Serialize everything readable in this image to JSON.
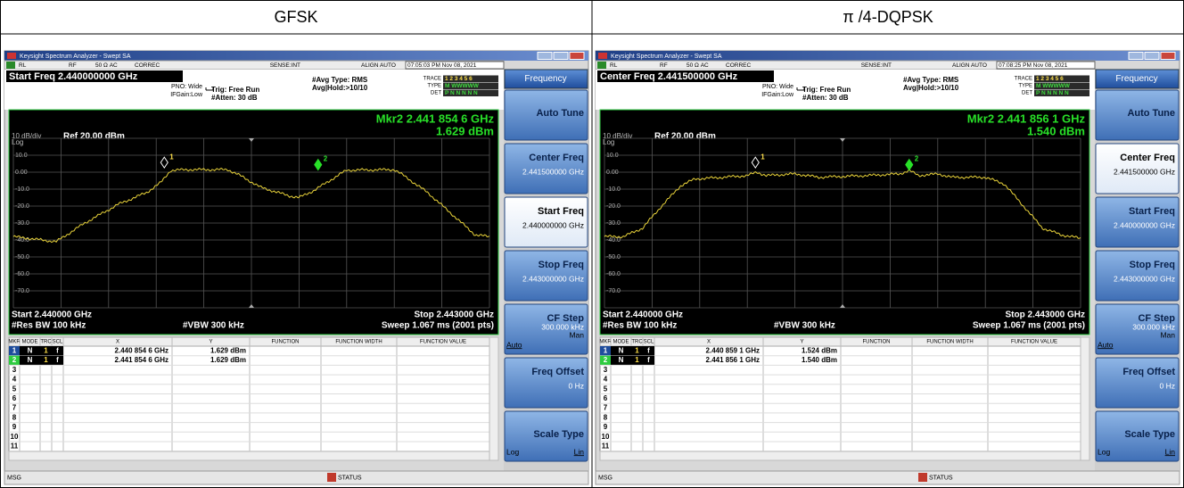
{
  "table": {
    "headers": [
      "GFSK",
      "π /4-DQPSK"
    ]
  },
  "panels": [
    {
      "window_title": "Keysight Spectrum Analyzer - Swept SA",
      "status": [
        "RL",
        "RF",
        "50 Ω  AC",
        "CORREC",
        "SENSE:INT",
        "ALIGN AUTO",
        "07:05:03 PM Nov 08, 2021"
      ],
      "active_function": "Start Freq 2.440000000 GHz",
      "settings": [
        "PNO: Wide",
        "IFGain:Low",
        "Trig: Free Run",
        "#Atten: 30 dB",
        "#Avg Type: RMS",
        "Avg|Hold:>10/10"
      ],
      "trace_labels": [
        "TRACE",
        "TYPE",
        "DET"
      ],
      "trace_rows": [
        "1 2 3 4 5 6",
        "M WWWWW",
        "P N N N N N"
      ],
      "marker_readout": [
        "Mkr2 2.441 854 6 GHz",
        "1.629 dBm"
      ],
      "scale": "10 dB/div",
      "log": "Log",
      "ref": "Ref 20.00 dBm",
      "y_labels": [
        "10.0",
        "0.00",
        "-10.0",
        "-20.0",
        "-30.0",
        "-40.0",
        "-50.0",
        "-60.0",
        "-70.0"
      ],
      "marker_flags": [
        "1",
        "2"
      ],
      "bottom": [
        "Start 2.440000 GHz",
        "Stop 2.443000 GHz",
        "#Res BW 100 kHz",
        "#VBW 300 kHz",
        "Sweep  1.067 ms (2001 pts)"
      ],
      "marker_table": {
        "columns": [
          "MKR",
          "MODE",
          "TRC",
          "SCL",
          "X",
          "Y",
          "FUNCTION",
          "FUNCTION WIDTH",
          "FUNCTION VALUE"
        ],
        "rows": [
          [
            "1",
            "N",
            "1",
            "f",
            "2.440 854 6 GHz",
            "1.629 dBm"
          ],
          [
            "2",
            "N",
            "1",
            "f",
            "2.441 854 6 GHz",
            "1.629 dBm"
          ]
        ],
        "empty_rows": [
          "3",
          "4",
          "5",
          "6",
          "7",
          "8",
          "9",
          "10",
          "11"
        ]
      },
      "menu": {
        "title": "Frequency",
        "active_key": 2,
        "keys": [
          {
            "label": "Auto Tune"
          },
          {
            "label": "Center Freq",
            "value": "2.441500000 GHz"
          },
          {
            "label": "Start Freq",
            "value": "2.440000000 GHz"
          },
          {
            "label": "Stop Freq",
            "value": "2.443000000 GHz"
          },
          {
            "label": "CF Step",
            "value": "300.000 kHz",
            "options": [
              "Auto",
              "Man"
            ]
          },
          {
            "label": "Freq Offset",
            "value": "0 Hz"
          },
          {
            "label": "Scale Type",
            "options": [
              "Log",
              "Lin"
            ]
          }
        ]
      },
      "message_bar": [
        "MSG",
        "STATUS"
      ]
    },
    {
      "window_title": "Keysight Spectrum Analyzer - Swept SA",
      "status": [
        "RL",
        "RF",
        "50 Ω  AC",
        "CORREC",
        "SENSE:INT",
        "ALIGN AUTO",
        "07:08:25 PM Nov 08, 2021"
      ],
      "active_function": "Center Freq 2.441500000 GHz",
      "settings": [
        "PNO: Wide",
        "IFGain:Low",
        "Trig: Free Run",
        "#Atten: 30 dB",
        "#Avg Type: RMS",
        "Avg|Hold:>10/10"
      ],
      "trace_labels": [
        "TRACE",
        "TYPE",
        "DET"
      ],
      "trace_rows": [
        "1 2 3 4 5 6",
        "M WWWWW",
        "P N N N N N"
      ],
      "marker_readout": [
        "Mkr2 2.441 856 1 GHz",
        "1.540 dBm"
      ],
      "scale": "10 dB/div",
      "log": "Log",
      "ref": "Ref 20.00 dBm",
      "y_labels": [
        "10.0",
        "0.00",
        "-10.0",
        "-20.0",
        "-30.0",
        "-40.0",
        "-50.0",
        "-60.0",
        "-70.0"
      ],
      "marker_flags": [
        "1",
        "2"
      ],
      "bottom": [
        "Start 2.440000 GHz",
        "Stop 2.443000 GHz",
        "#Res BW 100 kHz",
        "#VBW 300 kHz",
        "Sweep  1.067 ms (2001 pts)"
      ],
      "marker_table": {
        "columns": [
          "MKR",
          "MODE",
          "TRC",
          "SCL",
          "X",
          "Y",
          "FUNCTION",
          "FUNCTION WIDTH",
          "FUNCTION VALUE"
        ],
        "rows": [
          [
            "1",
            "N",
            "1",
            "f",
            "2.440 859 1 GHz",
            "1.524 dBm"
          ],
          [
            "2",
            "N",
            "1",
            "f",
            "2.441 856 1 GHz",
            "1.540 dBm"
          ]
        ],
        "empty_rows": [
          "3",
          "4",
          "5",
          "6",
          "7",
          "8",
          "9",
          "10",
          "11"
        ]
      },
      "menu": {
        "title": "Frequency",
        "active_key": 1,
        "keys": [
          {
            "label": "Auto Tune"
          },
          {
            "label": "Center Freq",
            "value": "2.441500000 GHz"
          },
          {
            "label": "Start Freq",
            "value": "2.440000000 GHz"
          },
          {
            "label": "Stop Freq",
            "value": "2.443000000 GHz"
          },
          {
            "label": "CF Step",
            "value": "300.000 kHz",
            "options": [
              "Auto",
              "Man"
            ]
          },
          {
            "label": "Freq Offset",
            "value": "0 Hz"
          },
          {
            "label": "Scale Type",
            "options": [
              "Log",
              "Lin"
            ]
          }
        ]
      },
      "message_bar": [
        "MSG",
        "STATUS"
      ]
    }
  ]
}
